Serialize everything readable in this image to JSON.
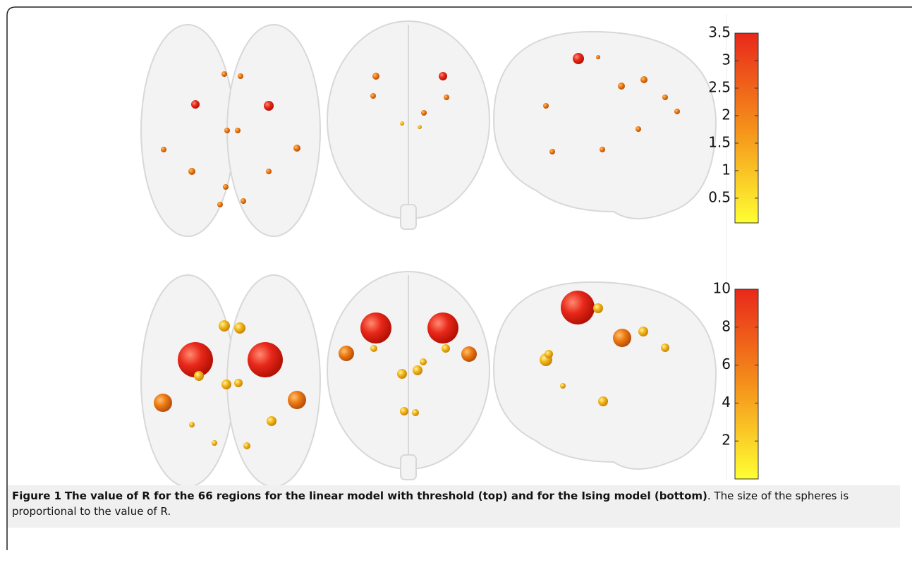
{
  "figure": {
    "colorbars": [
      {
        "lim": [
          0.05,
          3.5
        ],
        "ticks": [
          3.5,
          3,
          2.5,
          2,
          1.5,
          1,
          0.5
        ]
      },
      {
        "lim": [
          0,
          10
        ],
        "ticks": [
          10,
          8,
          6,
          4,
          2
        ]
      }
    ],
    "caption": {
      "label": "Figure 1",
      "title": "The value of R for the 66 regions for the linear model with threshold (top) and for the Ising model (bottom)",
      "text": ". The size of the spheres is proportional to the value of R."
    }
  }
}
